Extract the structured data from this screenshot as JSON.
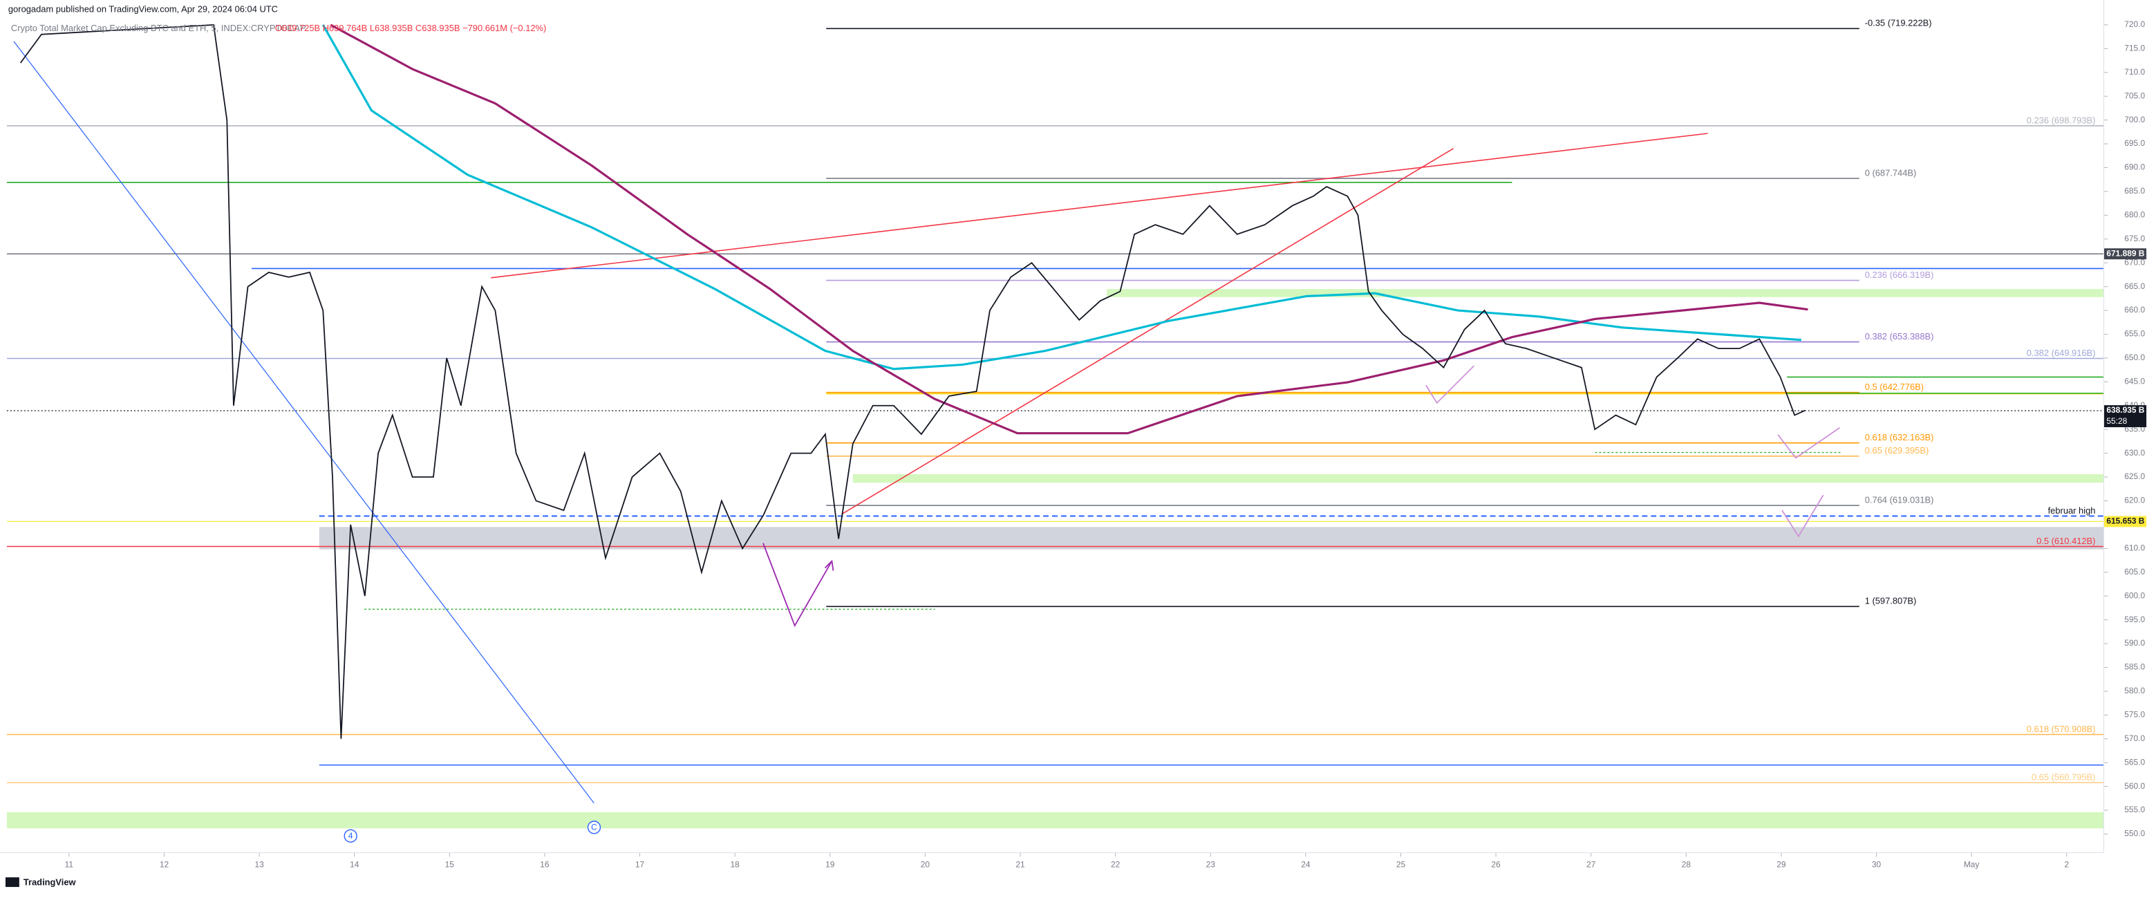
{
  "chart_data": {
    "type": "line",
    "header": "gorogadam published on TradingView.com, Apr 29, 2024 06:04 UTC",
    "title": "Crypto Total Market Cap Excluding BTC and ETH, 5, INDEX:CRYPTOCAP",
    "ohlc": "O639.725B H639.764B L638.935B C638.935B −790.661M (−0.12%)",
    "footer": "TradingView",
    "x": [
      10.49,
      10.71,
      12.52,
      12.66,
      12.73,
      12.88,
      13.1,
      13.31,
      13.53,
      13.67,
      13.77,
      13.86,
      13.96,
      14.11,
      14.25,
      14.4,
      14.61,
      14.83,
      14.97,
      15.12,
      15.34,
      15.48,
      15.7,
      15.91,
      16.2,
      16.42,
      16.64,
      16.92,
      17.21,
      17.43,
      17.65,
      17.86,
      18.08,
      18.3,
      18.59,
      18.8,
      18.95,
      19.09,
      19.24,
      19.45,
      19.67,
      19.96,
      20.25,
      20.54,
      20.68,
      20.9,
      21.12,
      21.33,
      21.62,
      21.84,
      22.05,
      22.2,
      22.42,
      22.71,
      22.99,
      23.28,
      23.57,
      23.86,
      24.08,
      24.22,
      24.44,
      24.55,
      24.66,
      24.8,
      25.02,
      25.23,
      25.45,
      25.67,
      25.88,
      26.1,
      26.32,
      26.61,
      26.9,
      27.04,
      27.26,
      27.47,
      27.69,
      27.91,
      28.12,
      28.34,
      28.56,
      28.77,
      28.99,
      29.14,
      29.25
    ],
    "values": [
      712,
      718,
      720,
      700,
      640,
      665,
      668,
      667,
      668,
      660,
      625,
      570,
      615,
      600,
      630,
      638,
      625,
      625,
      650,
      640,
      665,
      660,
      630,
      620,
      618,
      630,
      608,
      625,
      630,
      622,
      605,
      620,
      610,
      617,
      630,
      630,
      634,
      612,
      632,
      640,
      640,
      634,
      642,
      643,
      660,
      667,
      670,
      665,
      658,
      662,
      664,
      676,
      678,
      676,
      682,
      676,
      678,
      682,
      684,
      686,
      684,
      680,
      664,
      660,
      655,
      652,
      648,
      656,
      660,
      653,
      652,
      650,
      648,
      635,
      638,
      636,
      646,
      650,
      654,
      652,
      652,
      654,
      646,
      638,
      639
    ],
    "color": "#131722",
    "moving_averages": [
      {
        "color": "#00bcd4",
        "x": [
          13.67,
          14.18,
          15.19,
          16.49,
          17.79,
          18.95,
          19.67,
          20.39,
          21.26,
          22.56,
          24.01,
          24.73,
          25.6,
          26.46,
          27.33,
          28.2,
          29.21
        ],
        "values": [
          720,
          702,
          688.5,
          677.5,
          664.5,
          651.5,
          647.7,
          648.6,
          651.5,
          657.8,
          663,
          663.6,
          660,
          658.7,
          656.4,
          655.2,
          653.8
        ]
      },
      {
        "color": "#9c1f6e",
        "x": [
          13.75,
          14.61,
          15.48,
          16.49,
          17.5,
          18.37,
          19.24,
          20.1,
          20.97,
          22.13,
          23.28,
          24.44,
          25.45,
          26.17,
          27.04,
          27.91,
          28.77,
          29.28
        ],
        "values": [
          720,
          710.7,
          703.5,
          690.5,
          676,
          664.5,
          651.5,
          641.4,
          634.2,
          634.2,
          642,
          644.9,
          649.5,
          654.4,
          658.2,
          659.9,
          661.6,
          660.2
        ]
      }
    ],
    "xlim": [
      10.39,
      32.39
    ],
    "ylim": [
      546.1,
      722.9
    ],
    "xticks": [
      11,
      12,
      13,
      14,
      15,
      16,
      17,
      18,
      19,
      20,
      21,
      22,
      23,
      24,
      25,
      26,
      27,
      28,
      29,
      30,
      {
        "value": 31,
        "label": "May"
      },
      {
        "value": 32,
        "label": "2"
      }
    ],
    "yticks": [
      {
        "value": 550,
        "label": "550.0"
      },
      {
        "value": 555,
        "label": "555.0"
      },
      {
        "value": 560,
        "label": "560.0"
      },
      {
        "value": 565,
        "label": "565.0"
      },
      {
        "value": 570,
        "label": "570.0"
      },
      {
        "value": 575,
        "label": "575.0"
      },
      {
        "value": 580,
        "label": "580.0"
      },
      {
        "value": 585,
        "label": "585.0"
      },
      {
        "value": 590,
        "label": "590.0"
      },
      {
        "value": 595,
        "label": "595.0"
      },
      {
        "value": 600,
        "label": "600.0"
      },
      {
        "value": 605,
        "label": "605.0"
      },
      {
        "value": 610,
        "label": "610.0"
      },
      {
        "value": 615,
        "label": "615.0"
      },
      {
        "value": 620,
        "label": "620.0"
      },
      {
        "value": 625,
        "label": "625.0"
      },
      {
        "value": 630,
        "label": "630.0"
      },
      {
        "value": 635,
        "label": "635.0"
      },
      {
        "value": 640,
        "label": "640.0"
      },
      {
        "value": 645,
        "label": "645.0"
      },
      {
        "value": 650,
        "label": "650.0"
      },
      {
        "value": 655,
        "label": "655.0"
      },
      {
        "value": 660,
        "label": "660.0"
      },
      {
        "value": 665,
        "label": "665.0"
      },
      {
        "value": 670,
        "label": "670.0"
      },
      {
        "value": 675,
        "label": "675.0"
      },
      {
        "value": 680,
        "label": "680.0"
      },
      {
        "value": 685,
        "label": "685.0"
      },
      {
        "value": 690,
        "label": "690.0"
      },
      {
        "value": 695,
        "label": "695.0"
      },
      {
        "value": 700,
        "label": "700.0"
      },
      {
        "value": 705,
        "label": "705.0"
      },
      {
        "value": 710,
        "label": "710.0"
      },
      {
        "value": 715,
        "label": "715.0"
      },
      {
        "value": 720,
        "label": "720.0"
      }
    ],
    "levels": [
      {
        "label": "-0.35 (719.222B)",
        "value": 719.222,
        "color": "#131722",
        "from": 18.96,
        "to": 29.82
      },
      {
        "label": "0.236 (698.793B)",
        "value": 698.793,
        "color": "#b2b5be"
      },
      {
        "label": "0 (687.744B)",
        "value": 687.744,
        "color": "#787b86",
        "from": 18.96,
        "to": 29.82
      },
      {
        "value": 686.9,
        "color": "#22ab24",
        "to": 26.17
      },
      {
        "value": 668.8,
        "color": "#2962ff",
        "from": 12.92
      },
      {
        "label": "0.236 (666.319B)",
        "value": 666.319,
        "color": "#b39ddb",
        "from": 18.96,
        "to": 29.82
      },
      {
        "label": "0.382 (653.388B)",
        "value": 653.388,
        "color": "#9575cd",
        "from": 18.96,
        "to": 29.82
      },
      {
        "label": "0.382 (649.916B)",
        "value": 649.916,
        "color": "#9fa8da"
      },
      {
        "value": 646.0,
        "color": "#22ab24",
        "from": 29.06
      },
      {
        "label": "0.5 (642.776B)",
        "value": 642.776,
        "color": "#ff9800",
        "from": 18.96,
        "to": 29.82
      },
      {
        "value": 642.5,
        "color": "#f5d90a",
        "from": 18.96
      },
      {
        "value": 642.6,
        "color": "#22ab24",
        "from": 29.06
      },
      {
        "label": "0.618 (632.163B)",
        "value": 632.163,
        "color": "#ff9800",
        "from": 18.96,
        "to": 29.82
      },
      {
        "label": "0.65 (629.395B)",
        "value": 629.395,
        "color": "#ffb74d",
        "from": 18.96,
        "to": 29.82
      },
      {
        "label": "0.764 (619.031B)",
        "value": 619.031,
        "color": "#787b86",
        "from": 18.96,
        "to": 29.82
      },
      {
        "label": "februar high",
        "value": 616.8,
        "color": "#2962ff",
        "from": 13.63,
        "dashed": true
      },
      {
        "label": "0.5 (610.412B)",
        "value": 610.412,
        "color": "#f23645"
      },
      {
        "label": "1 (597.807B)",
        "value": 597.807,
        "color": "#131722",
        "from": 18.96,
        "to": 29.82
      },
      {
        "label": "0.618 (570.908B)",
        "value": 570.908,
        "color": "#ffb74d"
      },
      {
        "value": 564.5,
        "color": "#2962ff",
        "from": 13.63
      },
      {
        "label": "0.65 (560.795B)",
        "value": 560.795,
        "color": "#ffcc80"
      }
    ],
    "bands": [
      {
        "range": [
          662.8,
          664.5
        ],
        "color": "#d4f7bd",
        "from": 21.91
      },
      {
        "range": [
          623.8,
          625.6
        ],
        "color": "#d4f7bd",
        "from": 19.24
      },
      {
        "range": [
          609.8,
          614.5
        ],
        "color": "#d1d4dc",
        "from": 13.63
      },
      {
        "range": [
          551.2,
          554.6
        ],
        "color": "#d4f7bd"
      }
    ],
    "price_tags": [
      {
        "value": 671.889,
        "label": "671.889 B",
        "color": "#434651",
        "text_color": "#ffffff"
      },
      {
        "value": 638.935,
        "label": "638.935 B",
        "sub": "55:28",
        "color": "#131722",
        "text_color": "#ffffff"
      },
      {
        "value": 615.653,
        "label": "615.653 B",
        "color": "#ffeb3b",
        "text_color": "#131722"
      }
    ],
    "wave_labels": [
      {
        "label": "4",
        "x": 13.96,
        "value": 549.6
      },
      {
        "label": "C",
        "x": 16.52,
        "value": 551.4
      }
    ]
  }
}
